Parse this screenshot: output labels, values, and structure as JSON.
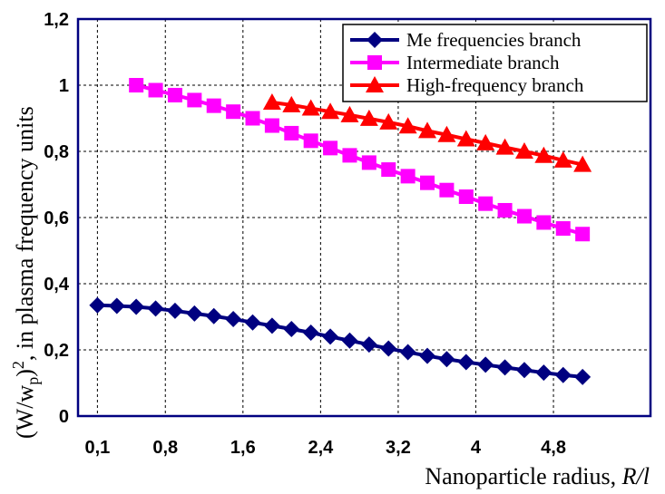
{
  "chart_data": {
    "type": "line",
    "xlabel_prefix": "Nanoparticle radius, ",
    "xlabel_italic": "R/l",
    "ylabel_base": "(W/w",
    "ylabel_sub": "p",
    "ylabel_paren": ")",
    "ylabel_sup": "2",
    "ylabel_suffix": ", in plasma frequency units",
    "x_tick_labels": [
      "0,1",
      "0,8",
      "1,6",
      "2,4",
      "3,2",
      "4",
      "4,8"
    ],
    "y_tick_labels": [
      "0",
      "0,2",
      "0,4",
      "0,6",
      "0,8",
      "1",
      "1,2"
    ],
    "x_ticks": [
      0.1,
      0.8,
      1.6,
      2.4,
      3.2,
      4.0,
      4.8
    ],
    "xlim": [
      -0.1,
      5.8
    ],
    "ylim": [
      0,
      1.2
    ],
    "grid": true,
    "legend_position": "top-right",
    "series": [
      {
        "name": "Me frequencies branch",
        "color": "#000080",
        "marker": "diamond",
        "x": [
          0.1,
          0.3,
          0.5,
          0.7,
          0.9,
          1.1,
          1.3,
          1.5,
          1.7,
          1.9,
          2.1,
          2.3,
          2.5,
          2.7,
          2.9,
          3.1,
          3.3,
          3.5,
          3.7,
          3.9,
          4.1,
          4.3,
          4.5,
          4.7,
          4.9,
          5.1
        ],
        "values": [
          0.335,
          0.333,
          0.33,
          0.325,
          0.318,
          0.31,
          0.302,
          0.293,
          0.283,
          0.273,
          0.263,
          0.252,
          0.24,
          0.228,
          0.216,
          0.204,
          0.193,
          0.182,
          0.172,
          0.163,
          0.155,
          0.147,
          0.139,
          0.131,
          0.124,
          0.118
        ]
      },
      {
        "name": "Intermediate branch",
        "color": "#ff00ff",
        "marker": "square",
        "x": [
          0.5,
          0.7,
          0.9,
          1.1,
          1.3,
          1.5,
          1.7,
          1.9,
          2.1,
          2.3,
          2.5,
          2.7,
          2.9,
          3.1,
          3.3,
          3.5,
          3.7,
          3.9,
          4.1,
          4.3,
          4.5,
          4.7,
          4.9,
          5.1
        ],
        "values": [
          1.0,
          0.985,
          0.97,
          0.955,
          0.938,
          0.92,
          0.9,
          0.878,
          0.855,
          0.832,
          0.81,
          0.788,
          0.766,
          0.745,
          0.725,
          0.705,
          0.683,
          0.663,
          0.642,
          0.622,
          0.604,
          0.585,
          0.567,
          0.55
        ]
      },
      {
        "name": "High-frequency branch",
        "color": "#ff0000",
        "marker": "triangle",
        "x": [
          1.9,
          2.1,
          2.3,
          2.5,
          2.7,
          2.9,
          3.1,
          3.3,
          3.5,
          3.7,
          3.9,
          4.1,
          4.3,
          4.5,
          4.7,
          4.9,
          5.1
        ],
        "values": [
          0.948,
          0.94,
          0.93,
          0.92,
          0.91,
          0.899,
          0.888,
          0.876,
          0.862,
          0.85,
          0.837,
          0.825,
          0.812,
          0.8,
          0.787,
          0.773,
          0.76
        ]
      }
    ]
  }
}
